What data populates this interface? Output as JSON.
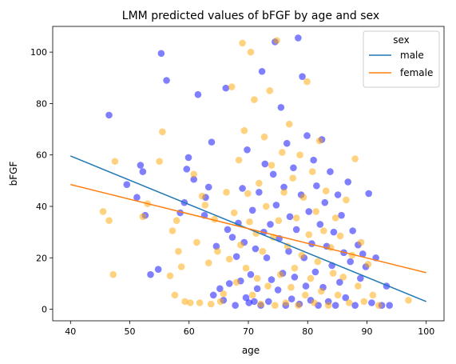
{
  "chart_data": {
    "type": "scatter",
    "title": "LMM predicted values of bFGF by age and sex",
    "xlabel": "age",
    "ylabel": "bFGF",
    "xlim": [
      37,
      103
    ],
    "ylim": [
      -4.5,
      110
    ],
    "xticks": [
      40,
      50,
      60,
      70,
      80,
      90,
      100
    ],
    "yticks": [
      0,
      20,
      40,
      60,
      80,
      100
    ],
    "grid": false,
    "legend": {
      "title": "sex",
      "placement": "top-right"
    },
    "series": [
      {
        "name": "male",
        "color": "#0000ff",
        "line_color": "#1f77b4",
        "fit_line": {
          "x": [
            40,
            100
          ],
          "y": [
            59.6,
            3.0
          ]
        },
        "points": [
          [
            46.5,
            75.5
          ],
          [
            49.5,
            48.5
          ],
          [
            51.2,
            43.5
          ],
          [
            51.8,
            56
          ],
          [
            52.2,
            53.5
          ],
          [
            52.6,
            36.5
          ],
          [
            53.5,
            13.5
          ],
          [
            54.8,
            15.5
          ],
          [
            55.3,
            99.5
          ],
          [
            56.2,
            89
          ],
          [
            58.5,
            37.5
          ],
          [
            59.2,
            41.5
          ],
          [
            59.6,
            54.5
          ],
          [
            59.9,
            59
          ],
          [
            60.8,
            50.5
          ],
          [
            61.5,
            83.5
          ],
          [
            62.6,
            36.5
          ],
          [
            62.8,
            43.5
          ],
          [
            63.3,
            47.5
          ],
          [
            63.8,
            65
          ],
          [
            64.1,
            5.5
          ],
          [
            64.6,
            24.5
          ],
          [
            65.2,
            8
          ],
          [
            65.8,
            3.5
          ],
          [
            66.2,
            86
          ],
          [
            66.5,
            31
          ],
          [
            66.8,
            10
          ],
          [
            67.3,
            28
          ],
          [
            67.8,
            1.5
          ],
          [
            68,
            20.5
          ],
          [
            68.3,
            33.5
          ],
          [
            68.7,
            11
          ],
          [
            69,
            47
          ],
          [
            69.3,
            26
          ],
          [
            69.6,
            4.5
          ],
          [
            69.8,
            62
          ],
          [
            70.1,
            2.5
          ],
          [
            70.4,
            13.5
          ],
          [
            70.7,
            38.5
          ],
          [
            71,
            3
          ],
          [
            71.2,
            23.5
          ],
          [
            71.5,
            8
          ],
          [
            71.8,
            45.5
          ],
          [
            72.1,
            1.5
          ],
          [
            72.3,
            92.5
          ],
          [
            72.6,
            30
          ],
          [
            72.8,
            56.5
          ],
          [
            73.1,
            20
          ],
          [
            73.4,
            3
          ],
          [
            73.7,
            33
          ],
          [
            73.9,
            11.5
          ],
          [
            74.2,
            52.5
          ],
          [
            74.5,
            104
          ],
          [
            74.7,
            40.5
          ],
          [
            75,
            7.5
          ],
          [
            75.2,
            27.5
          ],
          [
            75.5,
            78.5
          ],
          [
            75.8,
            14
          ],
          [
            76,
            47.5
          ],
          [
            76.3,
            1.5
          ],
          [
            76.5,
            64.5
          ],
          [
            76.8,
            22.5
          ],
          [
            77,
            36
          ],
          [
            77.3,
            4
          ],
          [
            77.6,
            55
          ],
          [
            77.8,
            12.5
          ],
          [
            78.1,
            31
          ],
          [
            78.4,
            105.5
          ],
          [
            78.6,
            2
          ],
          [
            78.9,
            44.5
          ],
          [
            79.1,
            90.5
          ],
          [
            79.4,
            20
          ],
          [
            79.7,
            9
          ],
          [
            79.9,
            67.5
          ],
          [
            80.2,
            38
          ],
          [
            80.5,
            3.5
          ],
          [
            80.7,
            25.5
          ],
          [
            81,
            58
          ],
          [
            81.3,
            14.5
          ],
          [
            81.5,
            48
          ],
          [
            81.8,
            1.5
          ],
          [
            82.1,
            33
          ],
          [
            82.4,
            66
          ],
          [
            82.6,
            8.5
          ],
          [
            82.9,
            41.5
          ],
          [
            83.2,
            24.5
          ],
          [
            83.5,
            3
          ],
          [
            83.8,
            53.5
          ],
          [
            84.1,
            17
          ],
          [
            84.4,
            30
          ],
          [
            84.7,
            1.5
          ],
          [
            85.1,
            44.5
          ],
          [
            85.4,
            10.5
          ],
          [
            85.7,
            36.5
          ],
          [
            86.1,
            22
          ],
          [
            86.4,
            4.5
          ],
          [
            86.8,
            49.5
          ],
          [
            87.2,
            18.5
          ],
          [
            87.6,
            30.5
          ],
          [
            88,
            1.5
          ],
          [
            88.5,
            25
          ],
          [
            88.9,
            12
          ],
          [
            89.3,
            21.5
          ],
          [
            89.8,
            16.5
          ],
          [
            90.3,
            45
          ],
          [
            90.8,
            2.5
          ],
          [
            91.5,
            20
          ],
          [
            92.5,
            1.5
          ],
          [
            93.3,
            9
          ],
          [
            93.8,
            1.5
          ]
        ]
      },
      {
        "name": "female",
        "color": "#ffa500",
        "line_color": "#ff7f0e",
        "fit_line": {
          "x": [
            40,
            100
          ],
          "y": [
            48.5,
            14.2
          ]
        },
        "points": [
          [
            45.5,
            38
          ],
          [
            46.5,
            34.5
          ],
          [
            47.2,
            13.5
          ],
          [
            47.5,
            57.5
          ],
          [
            52.2,
            36
          ],
          [
            53,
            41
          ],
          [
            55,
            57.5
          ],
          [
            55.5,
            69
          ],
          [
            56.8,
            13
          ],
          [
            57.2,
            30.5
          ],
          [
            57.6,
            5.5
          ],
          [
            57.9,
            34.5
          ],
          [
            58.2,
            22.5
          ],
          [
            58.7,
            16.5
          ],
          [
            59.3,
            3
          ],
          [
            60.2,
            2.5
          ],
          [
            60.8,
            52.5
          ],
          [
            61.3,
            26
          ],
          [
            61.8,
            2.5
          ],
          [
            62.2,
            44
          ],
          [
            62.7,
            40.5
          ],
          [
            63.3,
            18
          ],
          [
            63.7,
            2
          ],
          [
            64.3,
            35
          ],
          [
            64.8,
            22.5
          ],
          [
            65.3,
            3
          ],
          [
            65.8,
            6
          ],
          [
            66.3,
            45.5
          ],
          [
            66.8,
            19.5
          ],
          [
            67.2,
            86.5
          ],
          [
            67.6,
            37.5
          ],
          [
            68,
            10.5
          ],
          [
            68.4,
            58
          ],
          [
            68.7,
            25
          ],
          [
            69,
            103.5
          ],
          [
            69.3,
            69.5
          ],
          [
            69.6,
            16
          ],
          [
            69.9,
            45
          ],
          [
            70.2,
            34
          ],
          [
            70.4,
            100
          ],
          [
            70.7,
            5.5
          ],
          [
            71,
            81.5
          ],
          [
            71.3,
            29.5
          ],
          [
            71.5,
            12
          ],
          [
            71.8,
            49
          ],
          [
            72.1,
            2
          ],
          [
            72.4,
            22.5
          ],
          [
            72.7,
            67
          ],
          [
            73,
            40
          ],
          [
            73.3,
            9
          ],
          [
            73.6,
            85
          ],
          [
            73.9,
            56
          ],
          [
            74.2,
            28
          ],
          [
            74.5,
            1.5
          ],
          [
            74.8,
            104.5
          ],
          [
            75.1,
            34.5
          ],
          [
            75.4,
            13.5
          ],
          [
            75.7,
            61
          ],
          [
            76,
            45.5
          ],
          [
            76.3,
            2.5
          ],
          [
            76.6,
            24.5
          ],
          [
            76.9,
            72
          ],
          [
            77.2,
            8.5
          ],
          [
            77.5,
            51
          ],
          [
            77.8,
            16
          ],
          [
            78.1,
            35.5
          ],
          [
            78.4,
            1.5
          ],
          [
            78.7,
            60
          ],
          [
            79,
            21
          ],
          [
            79.3,
            43.5
          ],
          [
            79.6,
            5.5
          ],
          [
            79.9,
            88.5
          ],
          [
            80.2,
            29
          ],
          [
            80.5,
            12
          ],
          [
            80.8,
            53.5
          ],
          [
            81.1,
            2.5
          ],
          [
            81.4,
            38
          ],
          [
            81.7,
            18.5
          ],
          [
            82,
            65.5
          ],
          [
            82.3,
            7
          ],
          [
            82.7,
            30.5
          ],
          [
            83.1,
            46
          ],
          [
            83.5,
            1.5
          ],
          [
            83.9,
            24
          ],
          [
            84.3,
            14
          ],
          [
            84.7,
            35.5
          ],
          [
            85.1,
            5.5
          ],
          [
            85.5,
            28.5
          ],
          [
            86,
            12.5
          ],
          [
            86.5,
            42.5
          ],
          [
            87,
            2.5
          ],
          [
            87.5,
            21
          ],
          [
            88,
            58.5
          ],
          [
            88.5,
            9
          ],
          [
            89,
            26
          ],
          [
            89.5,
            3
          ],
          [
            90.2,
            17.5
          ],
          [
            91,
            5.5
          ],
          [
            92,
            1.5
          ],
          [
            97,
            3.5
          ]
        ]
      }
    ]
  }
}
